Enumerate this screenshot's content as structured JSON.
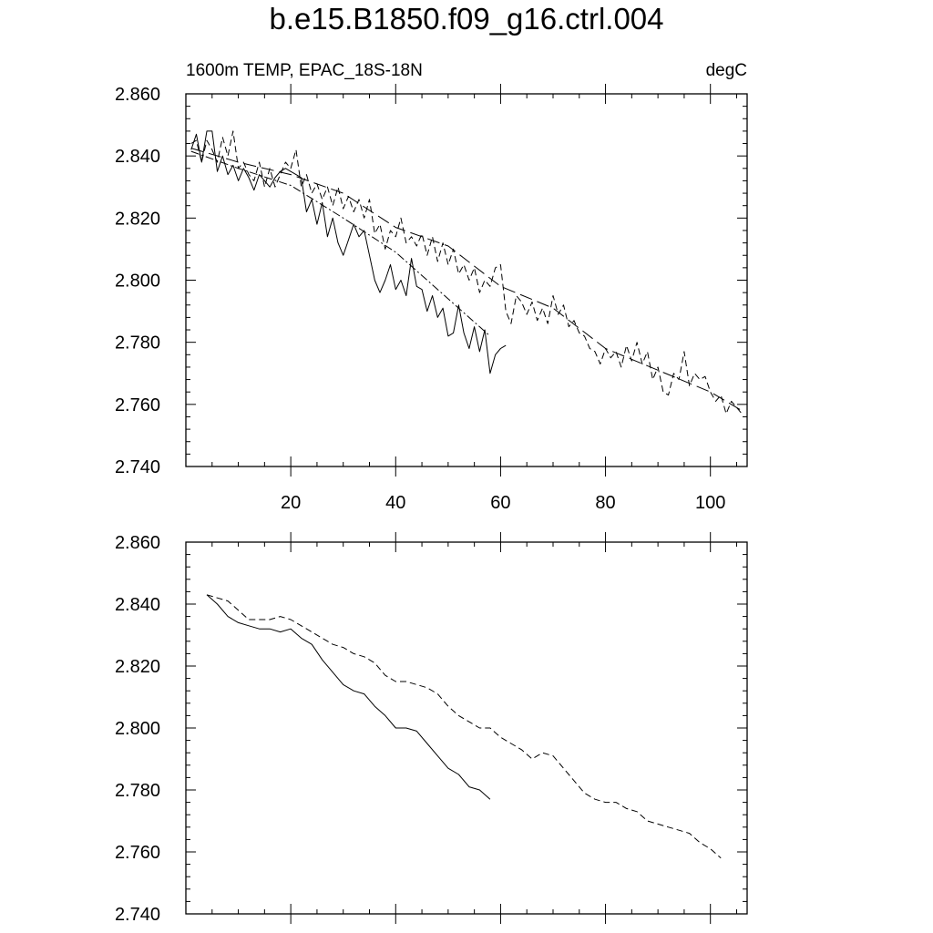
{
  "title": "b.e15.B1850.f09_g16.ctrl.004",
  "chart_data": [
    {
      "type": "line",
      "left_label": "1600m TEMP, EPAC_18S-18N",
      "right_label": "degC",
      "xlim": [
        0,
        107
      ],
      "ylim": [
        2.74,
        2.86
      ],
      "xticks": [
        20,
        40,
        60,
        80,
        100
      ],
      "yticks": [
        "2.740",
        "2.760",
        "2.780",
        "2.800",
        "2.820",
        "2.840",
        "2.860"
      ],
      "series": [
        {
          "style": "solid",
          "color": "#000000",
          "x": [
            1,
            2,
            3,
            4,
            5,
            6,
            7,
            8,
            9,
            10,
            11,
            12,
            13,
            14,
            15,
            16,
            17,
            18,
            19,
            20,
            21,
            22,
            23,
            24,
            25,
            26,
            27,
            28,
            29,
            30,
            31,
            32,
            33,
            34,
            35,
            36,
            37,
            38,
            39,
            40,
            41,
            42,
            43,
            44,
            45,
            46,
            47,
            48,
            49,
            50,
            51,
            52,
            53,
            54,
            55,
            56,
            57,
            58,
            59,
            60,
            61
          ],
          "y": [
            2.842,
            2.847,
            2.838,
            2.848,
            2.848,
            2.835,
            2.84,
            2.834,
            2.837,
            2.832,
            2.836,
            2.833,
            2.829,
            2.834,
            2.832,
            2.83,
            2.833,
            2.835,
            2.836,
            2.835,
            2.834,
            2.833,
            2.822,
            2.826,
            2.818,
            2.825,
            2.814,
            2.82,
            2.812,
            2.808,
            2.813,
            2.818,
            2.814,
            2.816,
            2.808,
            2.8,
            2.796,
            2.8,
            2.805,
            2.797,
            2.8,
            2.795,
            2.807,
            2.798,
            2.797,
            2.79,
            2.795,
            2.788,
            2.791,
            2.782,
            2.783,
            2.792,
            2.783,
            2.778,
            2.785,
            2.777,
            2.784,
            2.77,
            2.776,
            2.778,
            2.779
          ]
        },
        {
          "style": "dashed",
          "color": "#000000",
          "x": [
            1,
            2,
            3,
            4,
            5,
            6,
            7,
            8,
            9,
            10,
            11,
            12,
            13,
            14,
            15,
            16,
            17,
            18,
            19,
            20,
            21,
            22,
            23,
            24,
            25,
            26,
            27,
            28,
            29,
            30,
            31,
            32,
            33,
            34,
            35,
            36,
            37,
            38,
            39,
            40,
            41,
            42,
            43,
            44,
            45,
            46,
            47,
            48,
            49,
            50,
            51,
            52,
            53,
            54,
            55,
            56,
            57,
            58,
            59,
            60,
            61,
            62,
            63,
            64,
            65,
            66,
            67,
            68,
            69,
            70,
            71,
            72,
            73,
            74,
            75,
            76,
            77,
            78,
            79,
            80,
            81,
            82,
            83,
            84,
            85,
            86,
            87,
            88,
            89,
            90,
            91,
            92,
            93,
            94,
            95,
            96,
            97,
            98,
            99,
            100,
            101,
            102,
            103,
            104,
            105,
            106
          ],
          "y": [
            2.844,
            2.845,
            2.838,
            2.845,
            2.842,
            2.838,
            2.846,
            2.84,
            2.848,
            2.836,
            2.838,
            2.834,
            2.832,
            2.838,
            2.83,
            2.836,
            2.83,
            2.834,
            2.838,
            2.836,
            2.842,
            2.83,
            2.834,
            2.828,
            2.831,
            2.826,
            2.83,
            2.824,
            2.83,
            2.823,
            2.827,
            2.822,
            2.826,
            2.82,
            2.826,
            2.815,
            2.818,
            2.81,
            2.816,
            2.814,
            2.82,
            2.812,
            2.814,
            2.811,
            2.815,
            2.808,
            2.814,
            2.806,
            2.812,
            2.805,
            2.81,
            2.802,
            2.805,
            2.8,
            2.804,
            2.796,
            2.8,
            2.798,
            2.804,
            2.805,
            2.79,
            2.786,
            2.795,
            2.793,
            2.789,
            2.793,
            2.787,
            2.791,
            2.786,
            2.795,
            2.789,
            2.792,
            2.785,
            2.787,
            2.783,
            2.782,
            2.778,
            2.777,
            2.773,
            2.778,
            2.775,
            2.777,
            2.772,
            2.779,
            2.774,
            2.78,
            2.773,
            2.777,
            2.768,
            2.772,
            2.764,
            2.763,
            2.77,
            2.768,
            2.777,
            2.766,
            2.77,
            2.768,
            2.769,
            2.764,
            2.761,
            2.763,
            2.757,
            2.761,
            2.759,
            2.757
          ]
        },
        {
          "style": "dashdot",
          "color": "#000000",
          "x": [
            1,
            10,
            20,
            30,
            40,
            50,
            58
          ],
          "y": [
            2.8415,
            2.836,
            2.8305,
            2.82,
            2.809,
            2.794,
            2.782
          ]
        },
        {
          "style": "longdash",
          "color": "#000000",
          "x": [
            1,
            10,
            20,
            30,
            40,
            50,
            60,
            70,
            80,
            90,
            100,
            106
          ],
          "y": [
            2.8425,
            2.838,
            2.834,
            2.828,
            2.817,
            2.811,
            2.798,
            2.791,
            2.778,
            2.771,
            2.764,
            2.758
          ]
        }
      ]
    },
    {
      "type": "line",
      "xlim": [
        0,
        107
      ],
      "ylim": [
        2.74,
        2.86
      ],
      "xticks": [
        20,
        40,
        60,
        80,
        100
      ],
      "yticks": [
        "2.740",
        "2.760",
        "2.780",
        "2.800",
        "2.820",
        "2.840",
        "2.860"
      ],
      "series": [
        {
          "style": "solid",
          "color": "#000000",
          "x": [
            4,
            6,
            8,
            10,
            12,
            14,
            16,
            18,
            20,
            22,
            24,
            26,
            28,
            30,
            32,
            34,
            36,
            38,
            40,
            42,
            44,
            46,
            48,
            50,
            52,
            54,
            56,
            58
          ],
          "y": [
            2.843,
            2.84,
            2.836,
            2.834,
            2.833,
            2.832,
            2.832,
            2.831,
            2.832,
            2.829,
            2.827,
            2.822,
            2.818,
            2.814,
            2.812,
            2.811,
            2.807,
            2.804,
            2.8,
            2.8,
            2.799,
            2.795,
            2.791,
            2.787,
            2.785,
            2.781,
            2.78,
            2.777
          ]
        },
        {
          "style": "dashed",
          "color": "#000000",
          "x": [
            4,
            6,
            8,
            10,
            12,
            14,
            16,
            18,
            20,
            22,
            24,
            26,
            28,
            30,
            32,
            34,
            36,
            38,
            40,
            42,
            44,
            46,
            48,
            50,
            52,
            54,
            56,
            58,
            60,
            62,
            64,
            66,
            68,
            70,
            72,
            74,
            76,
            78,
            80,
            82,
            84,
            86,
            88,
            90,
            92,
            94,
            96,
            98,
            100,
            102
          ],
          "y": [
            2.843,
            2.842,
            2.841,
            2.838,
            2.835,
            2.835,
            2.835,
            2.836,
            2.835,
            2.833,
            2.831,
            2.829,
            2.827,
            2.826,
            2.824,
            2.823,
            2.821,
            2.817,
            2.815,
            2.815,
            2.814,
            2.813,
            2.811,
            2.807,
            2.804,
            2.802,
            2.8,
            2.8,
            2.797,
            2.795,
            2.793,
            2.79,
            2.792,
            2.791,
            2.787,
            2.783,
            2.779,
            2.777,
            2.776,
            2.776,
            2.774,
            2.773,
            2.77,
            2.769,
            2.768,
            2.767,
            2.766,
            2.763,
            2.761,
            2.758
          ]
        }
      ]
    }
  ]
}
